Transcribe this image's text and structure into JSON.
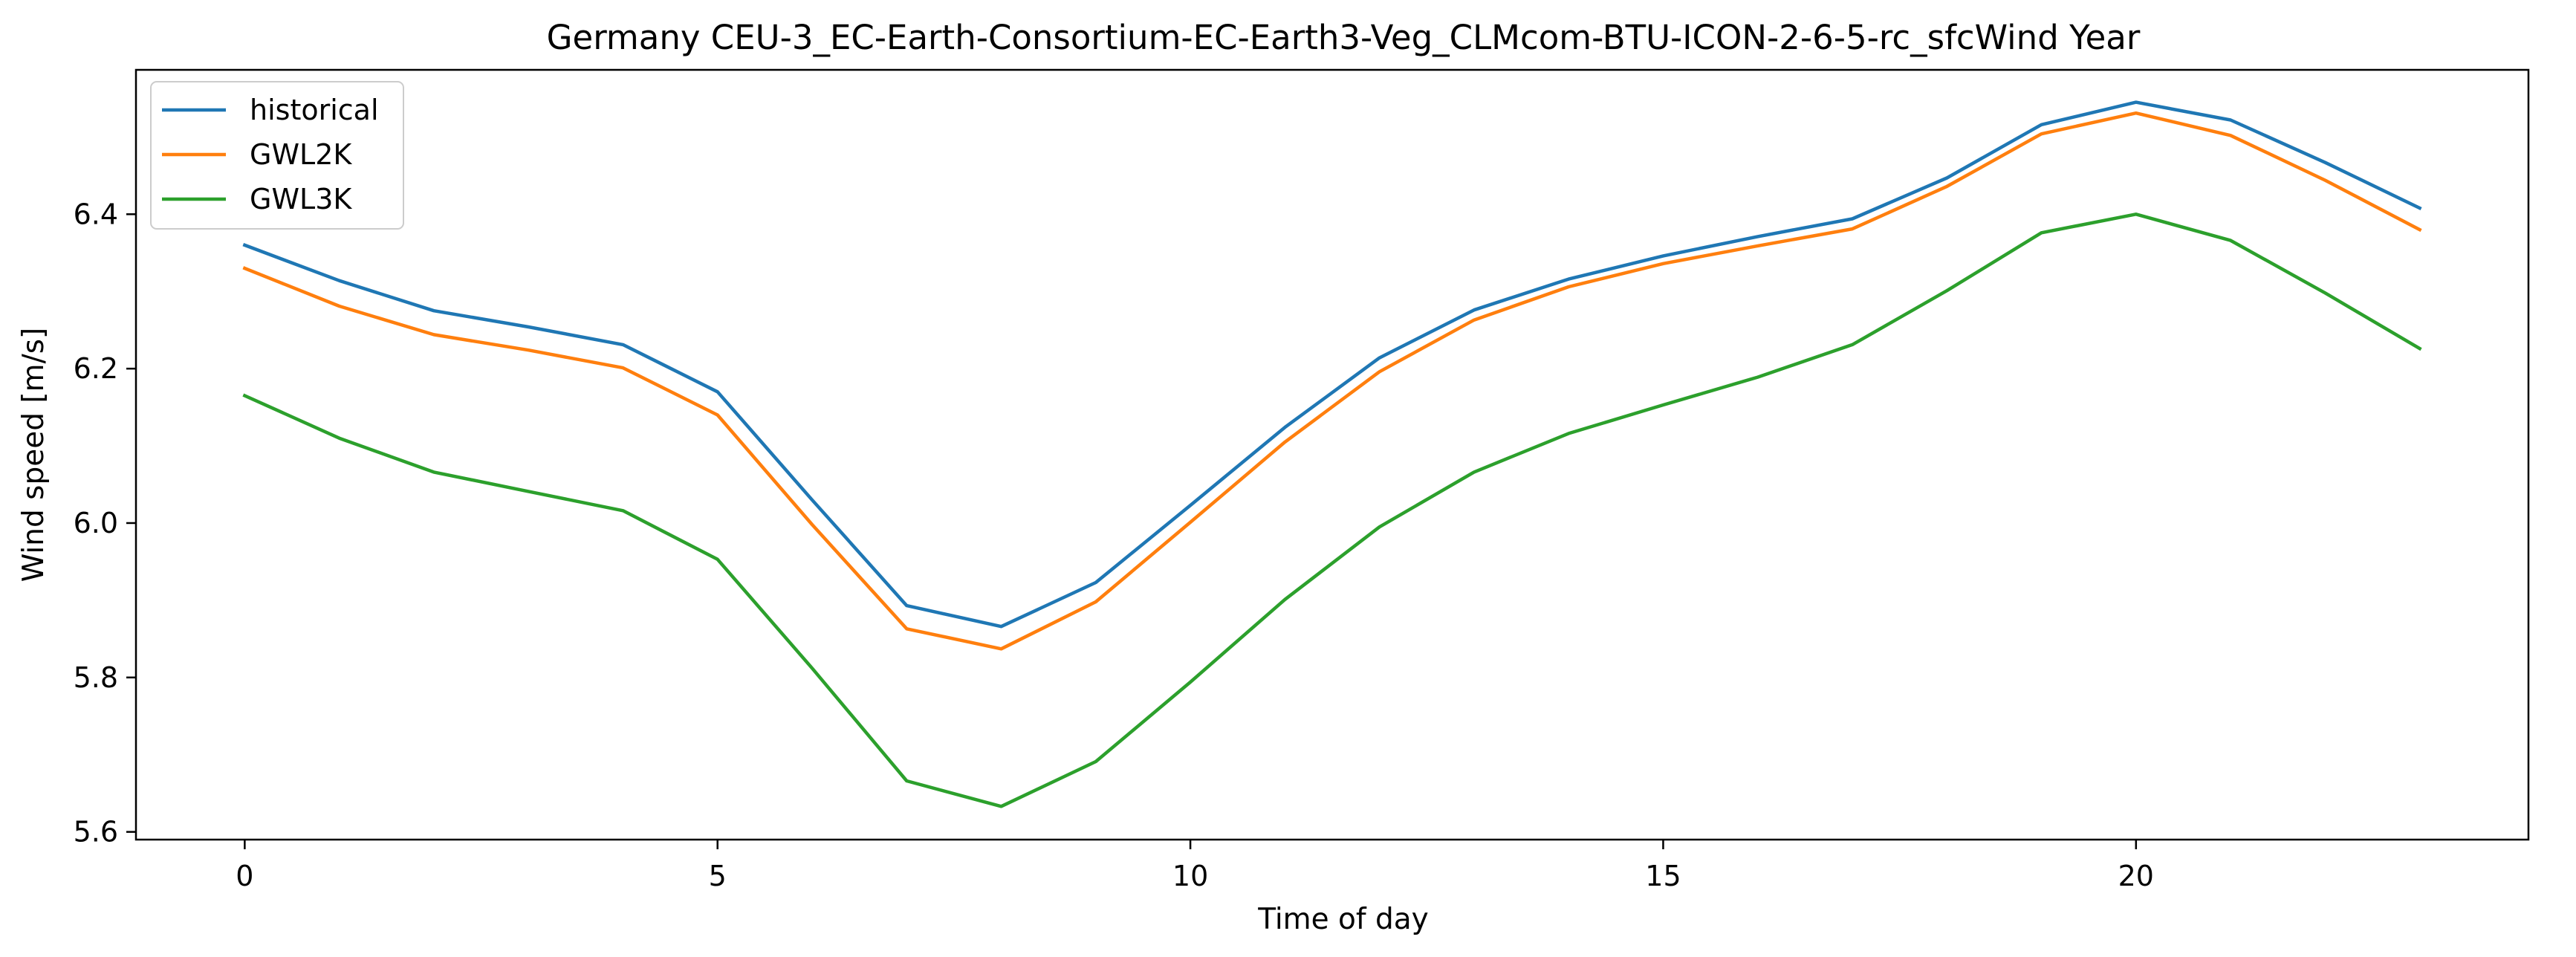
{
  "chart_data": {
    "type": "line",
    "title": "Germany CEU-3_EC-Earth-Consortium-EC-Earth3-Veg_CLMcom-BTU-ICON-2-6-5-rc_sfcWind Year",
    "xlabel": "Time of day",
    "ylabel": "Wind speed [m/s]",
    "xlim": [
      -1.15,
      24.15
    ],
    "ylim": [
      5.59,
      6.587
    ],
    "x_ticks": [
      0,
      5,
      10,
      15,
      20
    ],
    "x_tick_labels": [
      "0",
      "5",
      "10",
      "15",
      "20"
    ],
    "y_ticks": [
      5.6,
      5.8,
      6.0,
      6.2,
      6.4
    ],
    "y_tick_labels": [
      "5.6",
      "5.8",
      "6.0",
      "6.2",
      "6.4"
    ],
    "grid": false,
    "legend_position": "top-left",
    "x": [
      0,
      1,
      2,
      3,
      4,
      5,
      6,
      7,
      8,
      9,
      10,
      11,
      12,
      13,
      14,
      15,
      16,
      17,
      18,
      19,
      20,
      21,
      22,
      23
    ],
    "series": [
      {
        "name": "historical",
        "color": "#1f77b4",
        "values": [
          6.36,
          6.314,
          6.275,
          6.254,
          6.231,
          6.17,
          6.03,
          5.893,
          5.866,
          5.923,
          6.023,
          6.124,
          6.214,
          6.276,
          6.316,
          6.346,
          6.371,
          6.394,
          6.447,
          6.516,
          6.545,
          6.522,
          6.467,
          6.408
        ]
      },
      {
        "name": "GWL2K",
        "color": "#ff7f0e",
        "values": [
          6.33,
          6.281,
          6.244,
          6.224,
          6.201,
          6.14,
          5.998,
          5.863,
          5.837,
          5.898,
          6.001,
          6.105,
          6.196,
          6.263,
          6.306,
          6.336,
          6.359,
          6.381,
          6.436,
          6.504,
          6.531,
          6.502,
          6.444,
          6.38
        ]
      },
      {
        "name": "GWL3K",
        "color": "#2ca02c",
        "values": [
          6.165,
          6.11,
          6.066,
          6.041,
          6.016,
          5.953,
          5.812,
          5.666,
          5.633,
          5.691,
          5.794,
          5.901,
          5.995,
          6.066,
          6.116,
          6.153,
          6.189,
          6.231,
          6.301,
          6.376,
          6.4,
          6.366,
          6.298,
          6.226
        ]
      }
    ]
  }
}
